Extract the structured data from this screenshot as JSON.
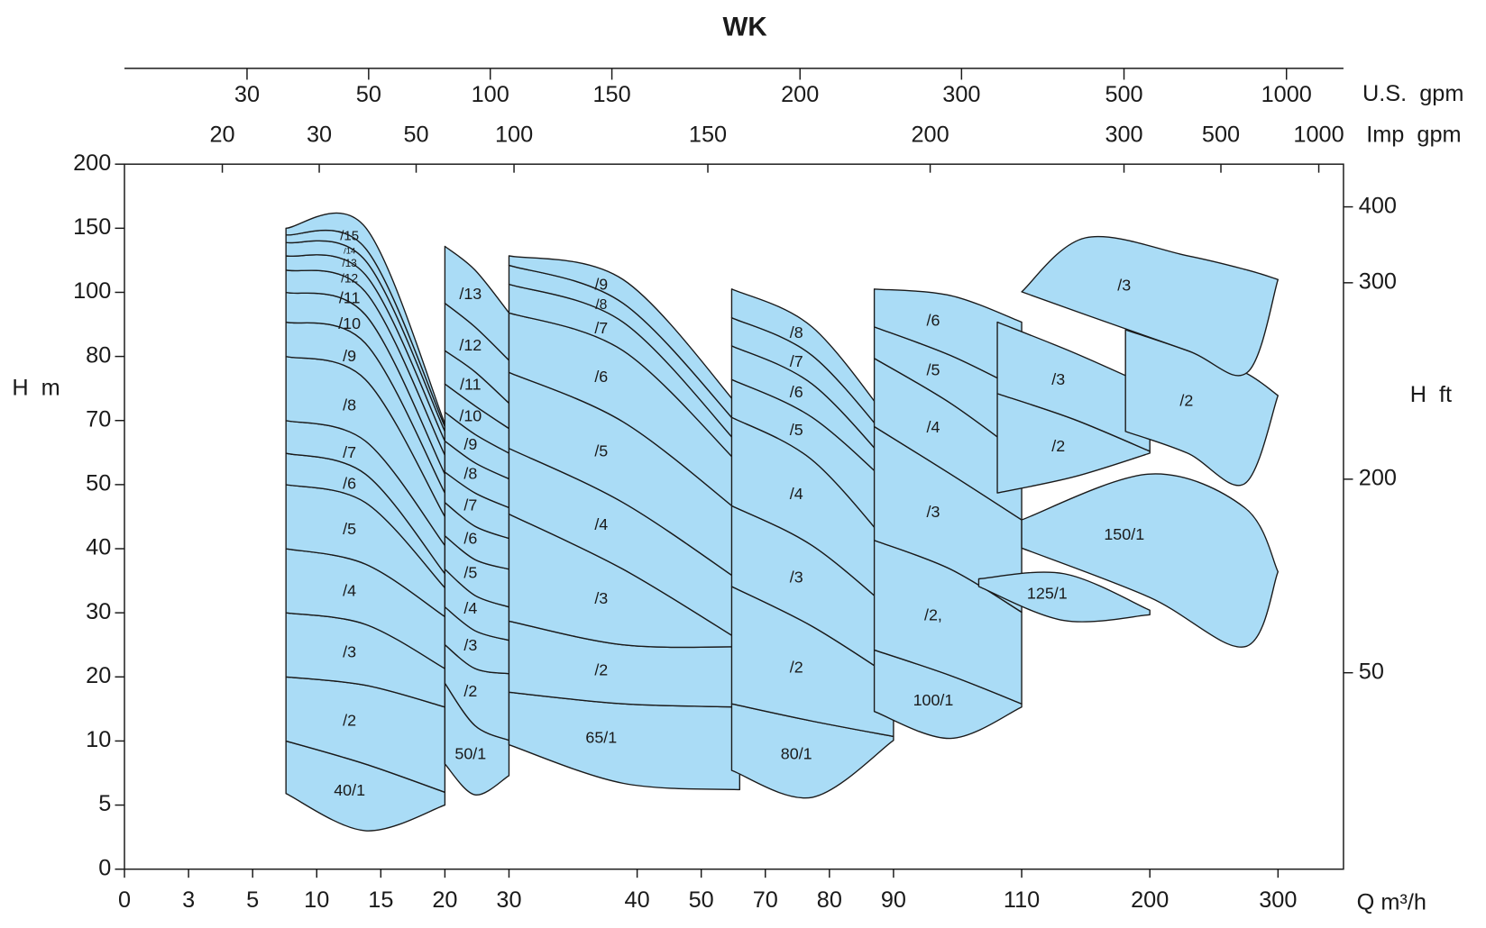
{
  "chart_data": {
    "type": "region",
    "title": "WK",
    "x_label": "Q m³/h",
    "y_label": "H  m",
    "y2_label": "H  ft",
    "top_label": "U.S.  gpm",
    "top2_label": "Imp  gpm",
    "xticks": [
      0,
      3,
      5,
      10,
      15,
      20,
      30,
      40,
      50,
      70,
      80,
      90,
      110,
      200,
      300
    ],
    "yticks": [
      0,
      5,
      10,
      20,
      30,
      40,
      50,
      70,
      80,
      100,
      150,
      200
    ],
    "ylim": [
      0,
      200
    ],
    "y2ticks": [
      400,
      300,
      200,
      50
    ],
    "top_ticks": [
      30,
      50,
      100,
      150,
      200,
      300,
      500,
      1000
    ],
    "top2_ticks": [
      20,
      30,
      50,
      100,
      150,
      200,
      300,
      500,
      1000
    ],
    "color": "#aadcf6",
    "edge_color": "#1a1a1a",
    "groups": [
      {
        "x": [
          7.6,
          13.8,
          20
        ],
        "curves": [
          [
            5.9,
            3.0,
            5.0
          ],
          [
            10,
            8.2,
            6
          ],
          [
            20,
            18.7,
            15.3
          ],
          [
            30,
            28.2,
            21.3
          ],
          [
            40,
            37.6,
            29.4
          ],
          [
            50,
            47.2,
            33.9
          ],
          [
            59.8,
            53.3,
            36.1
          ],
          [
            70,
            63.6,
            40.5
          ],
          [
            80,
            76.4,
            45
          ],
          [
            90.7,
            84.1,
            48.7
          ],
          [
            100,
            93,
            53.3
          ],
          [
            117.4,
            100.4,
            59.2
          ],
          [
            128.5,
            113.7,
            63.6
          ],
          [
            138.9,
            124.8,
            66.6
          ],
          [
            144.8,
            134.4,
            68.1
          ],
          [
            150,
            150.7,
            69
          ]
        ],
        "labels": [
          "40/1",
          "/2",
          "/3",
          "/4",
          "/5",
          "/6",
          "/7",
          "/8",
          "/9",
          "/10",
          "/11",
          "/12",
          "/13",
          "/14",
          "/15"
        ]
      },
      {
        "x": [
          20,
          24.7,
          30
        ],
        "curves": [
          [
            8.2,
            5.8,
            7.3
          ],
          [
            19,
            12.4,
            10.1
          ],
          [
            25,
            21.3,
            20.5
          ],
          [
            30.9,
            27.2,
            25.7
          ],
          [
            36.8,
            32.7,
            30.9
          ],
          [
            42,
            38.3,
            36.8
          ],
          [
            47.2,
            43.5,
            41.6
          ],
          [
            53.9,
            48.7,
            46.4
          ],
          [
            63.6,
            56.8,
            51.8
          ],
          [
            71.3,
            65.7,
            59.8
          ],
          [
            75.7,
            72.3,
            67.5
          ],
          [
            81.8,
            77.6,
            72.7
          ],
          [
            96.6,
            89.2,
            79.4
          ],
          [
            135.9,
            117.4,
            93.6
          ]
        ],
        "labels": [
          "50/1",
          "/2",
          "/3",
          "/4",
          "/5",
          "/6",
          "/7",
          "/8",
          "/9",
          "/10",
          "/11",
          "/12",
          "/13"
        ]
      },
      {
        "x": [
          30,
          38.9,
          62
        ],
        "curves": [
          [
            9.7,
            6.7,
            6.2
          ],
          [
            17.6,
            15.8,
            15.3
          ],
          [
            28.7,
            25,
            24.7
          ],
          [
            45.4,
            36.8,
            25.7
          ],
          [
            61.3,
            47.2,
            35
          ],
          [
            77.5,
            69.6,
            45.7
          ],
          [
            93.6,
            81.8,
            56.2
          ],
          [
            106.3,
            90.7,
            62.1
          ],
          [
            121.1,
            96.6,
            68.1
          ],
          [
            128.5,
            110,
            72
          ]
        ],
        "labels": [
          "65/1",
          "/2",
          "/3",
          "/4",
          "/5",
          "/6",
          "/7",
          "/8",
          "/9"
        ]
      },
      {
        "x": [
          59.5,
          77.3,
          90
        ],
        "curves": [
          [
            7.7,
            5.6,
            10.1
          ],
          [
            15.8,
            13.1,
            10.7
          ],
          [
            34.1,
            27.9,
            19.8
          ],
          [
            46.7,
            40.5,
            30.1
          ],
          [
            70.5,
            57.7,
            39.8
          ],
          [
            76.4,
            70.5,
            49.4
          ],
          [
            83.3,
            75.7,
            54.7
          ],
          [
            92.1,
            80.3,
            62.1
          ],
          [
            102.6,
            89.2,
            68.1
          ]
        ],
        "labels": [
          "80/1",
          "/2",
          "/3",
          "/4",
          "/5",
          "/6",
          "/7",
          "/8"
        ]
      },
      {
        "x": [
          87,
          98.9,
          110
        ],
        "curves": [
          [
            14.6,
            10.4,
            15.3
          ],
          [
            24.2,
            20.2,
            15.8
          ],
          [
            41.3,
            36.8,
            30.1
          ],
          [
            68.1,
            53.3,
            44.5
          ],
          [
            79.7,
            72.7,
            59.2
          ],
          [
            89.2,
            80.3,
            74.7
          ],
          [
            102.6,
            99,
            90.7
          ]
        ],
        "labels": [
          "100/1",
          "/2,",
          "/3",
          "/4",
          "/5",
          "/6"
        ]
      },
      {
        "x": [
          103.3,
          139.7,
          200
        ],
        "curves": [
          [
            34.1,
            28.8,
            29.7
          ],
          [
            35.3,
            36.1,
            30.4
          ]
        ],
        "labels": [
          "125/1"
        ]
      },
      {
        "x": [
          106.2,
          146.5,
          200
        ],
        "curves": [
          [
            48.7,
            52.4,
            59.8
          ],
          [
            74.2,
            70.2,
            60.4
          ],
          [
            90.7,
            81.2,
            75.3
          ]
        ],
        "labels": [
          "/2",
          "/3"
        ]
      },
      {
        "x": [
          110,
          200,
          274,
          300
        ],
        "curves": [
          [
            40.1,
            32.4,
            24.7,
            36.4
          ],
          [
            44.5,
            53.3,
            46.4,
            36.4
          ]
        ],
        "labels": [
          "150/1"
        ]
      },
      {
        "x": [
          182.9,
          229.5,
          274,
          300
        ],
        "curves": [
          [
            66.6,
            59.8,
            50.3,
            73.9
          ],
          [
            88.3,
            81.8,
            77.5,
            73.9
          ]
        ],
        "labels": [
          "/2"
        ]
      },
      {
        "x": [
          110,
          155,
          229.5,
          276,
          300
        ],
        "curves": [
          [
            100.4,
            93,
            81.8,
            77.5,
            110
          ],
          [
            100.4,
            142.6,
            128.5,
            117.4,
            110
          ]
        ],
        "labels": [
          "/3"
        ]
      }
    ]
  }
}
